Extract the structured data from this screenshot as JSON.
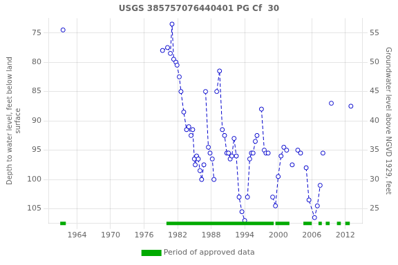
{
  "chart_data": {
    "type": "line",
    "title": "USGS 385757076440401 PG Cf  30",
    "ylabel": "Depth to water level, feet below land\nsurface",
    "y2label": "Groundwater level above NGVD 1929, feet",
    "xlim": [
      1959,
      2015
    ],
    "xticks": [
      1964,
      1970,
      1976,
      1982,
      1988,
      1994,
      2000,
      2006,
      2012
    ],
    "ylim": [
      107.5,
      72.5
    ],
    "yticks": [
      75,
      80,
      85,
      90,
      95,
      100,
      105
    ],
    "y2lim": [
      22.5,
      57.5
    ],
    "y2ticks": [
      25,
      30,
      35,
      40,
      45,
      50,
      55
    ],
    "grid": true,
    "legend": "bottom",
    "series": [
      {
        "color": "#0000cc",
        "line_style": "dashed",
        "marker": "circle",
        "x": [
          1961.5
        ],
        "values": [
          74.5
        ]
      },
      {
        "color": "#0000cc",
        "line_style": "dashed",
        "marker": "circle",
        "x": [
          1979.3,
          1980.2,
          1980.7,
          1981.0,
          1981.3,
          1981.7,
          1981.9,
          1982.3,
          1982.6,
          1983.1,
          1983.6,
          1984.0,
          1984.4,
          1984.7,
          1985.0,
          1985.15,
          1985.4,
          1985.7,
          1986.0,
          1986.3,
          1986.7
        ],
        "values": [
          78.0,
          77.5,
          78.5,
          73.5,
          79.5,
          80.0,
          80.5,
          82.5,
          85.0,
          88.5,
          91.5,
          91.0,
          92.5,
          91.5,
          96.5,
          97.5,
          96.0,
          96.5,
          98.5,
          100.0,
          97.5
        ]
      },
      {
        "color": "#0000cc",
        "line_style": "dashed",
        "marker": "circle",
        "x": [
          1987.0,
          1987.5,
          1987.8,
          1988.2,
          1988.5
        ],
        "values": [
          85.0,
          94.5,
          95.5,
          96.5,
          100.0
        ]
      },
      {
        "color": "#0000cc",
        "line_style": "dashed",
        "marker": "circle",
        "x": [
          1989.0,
          1989.5,
          1990.0,
          1990.4,
          1990.8,
          1991.1,
          1991.4,
          1991.7,
          1992.1,
          1992.5,
          1993.0,
          1993.5,
          1994.0
        ],
        "values": [
          85.0,
          81.5,
          91.5,
          92.5,
          95.5,
          95.5,
          96.5,
          96.0,
          93.0,
          96.0,
          103.0,
          105.5,
          107.0
        ]
      },
      {
        "color": "#0000cc",
        "line_style": "dashed",
        "marker": "circle",
        "x": [
          1994.5,
          1994.9,
          1995.2,
          1995.5,
          1995.9,
          1996.2
        ],
        "values": [
          103.0,
          96.5,
          95.5,
          95.5,
          93.5,
          92.5
        ]
      },
      {
        "color": "#0000cc",
        "line_style": "dashed",
        "marker": "circle",
        "x": [
          1997.0,
          1997.5,
          1997.8,
          1998.2
        ],
        "values": [
          88.0,
          95.0,
          95.5,
          95.5
        ]
      },
      {
        "color": "#0000cc",
        "line_style": "dashed",
        "marker": "circle",
        "x": [
          1999.0,
          1999.5,
          2000.0,
          2000.5,
          2001.0,
          2001.5
        ],
        "values": [
          103.0,
          104.5,
          99.5,
          96.0,
          94.5,
          95.0
        ]
      },
      {
        "color": "#0000cc",
        "line_style": "dashed",
        "marker": "circle",
        "x": [
          2002.5
        ],
        "values": [
          97.5
        ]
      },
      {
        "color": "#0000cc",
        "line_style": "dashed",
        "marker": "circle",
        "x": [
          2003.5,
          2004.0
        ],
        "values": [
          95.0,
          95.5
        ]
      },
      {
        "color": "#0000cc",
        "line_style": "dashed",
        "marker": "circle",
        "x": [
          2005.0,
          2005.5,
          2006.5,
          2007.0,
          2007.5
        ],
        "values": [
          98.0,
          103.5,
          106.5,
          104.5,
          101.0
        ]
      },
      {
        "color": "#0000cc",
        "line_style": "dashed",
        "marker": "circle",
        "x": [
          2008.0
        ],
        "values": [
          95.5
        ]
      },
      {
        "color": "#0000cc",
        "line_style": "dashed",
        "marker": "circle",
        "x": [
          2009.5
        ],
        "values": [
          87.0
        ]
      },
      {
        "color": "#0000cc",
        "line_style": "dashed",
        "marker": "circle",
        "x": [
          2013.0
        ],
        "values": [
          87.5
        ]
      },
      {
        "name": "Period of approved data",
        "color": "#00aa00",
        "type": "span",
        "periods": [
          [
            1961.0,
            1962.0
          ],
          [
            1980.0,
            1999.2
          ],
          [
            1999.5,
            2002.0
          ],
          [
            2004.5,
            2006.0
          ],
          [
            2007.2,
            2007.8
          ],
          [
            2008.5,
            2009.2
          ],
          [
            2010.5,
            2011.2
          ],
          [
            2012.0,
            2012.8
          ]
        ]
      }
    ]
  }
}
